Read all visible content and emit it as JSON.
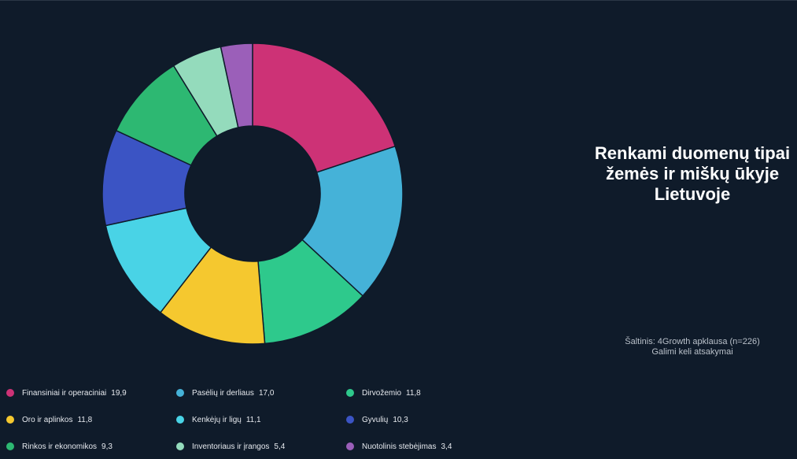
{
  "title": "Renkami duomenų tipai žemės ir miškų ūkyje Lietuvoje",
  "source_line1": "Šaltinis: 4Growth apklausa (n=226)",
  "source_line2": "Galimi keli atsakymai",
  "chart_data": {
    "type": "pie",
    "variant": "donut",
    "title": "Renkami duomenų tipai žemės ir miškų ūkyje Lietuvoje",
    "categories": [
      "Finansiniai ir operaciniai",
      "Pasėlių ir derliaus",
      "Dirvožemio",
      "Oro ir aplinkos",
      "Kenkėjų ir ligų",
      "Gyvulių",
      "Rinkos ir ekonomikos",
      "Inventoriaus ir įrangos",
      "Nuotolinis stebėjimas"
    ],
    "values": [
      19.9,
      17.0,
      11.8,
      11.8,
      11.1,
      10.3,
      9.3,
      5.4,
      3.4
    ],
    "value_labels": [
      "19,9",
      "17,0",
      "11,8",
      "11,8",
      "11,1",
      "10,3",
      "9,3",
      "5,4",
      "3,4"
    ],
    "colors": [
      "#cd3276",
      "#45b2d8",
      "#2ec98c",
      "#f5c82f",
      "#49d3e6",
      "#3b54c4",
      "#2db872",
      "#94dbbc",
      "#9b5fb9"
    ],
    "legend_position": "bottom-left"
  }
}
